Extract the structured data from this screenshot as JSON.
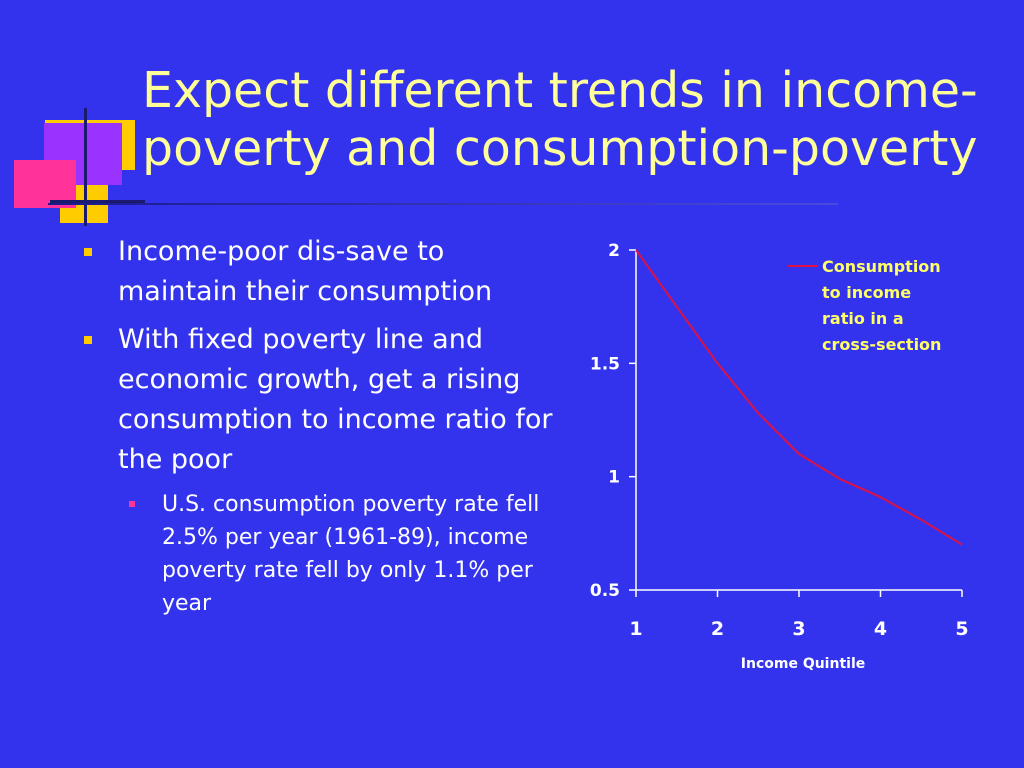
{
  "slide": {
    "title": "Expect different trends in income-poverty and consumption-poverty",
    "bullets": [
      "Income-poor dis-save to maintain their consumption",
      "With fixed poverty line and economic growth, get a rising consumption to income ratio for the poor"
    ],
    "sub_bullets": [
      "U.S. consumption poverty rate fell 2.5% per year (1961-89), income poverty rate fell by only 1.1% per year"
    ]
  },
  "colors": {
    "background": "#3333ee",
    "title": "#ffff99",
    "bullet_marker": "#ffcc00",
    "sub_bullet_marker": "#ff3399",
    "series_line": "#dd1144",
    "legend_text": "#ffff66"
  },
  "chart_data": {
    "type": "line",
    "xlabel": "Income Quintile",
    "ylabel": "",
    "x_ticks": [
      "1",
      "2",
      "3",
      "4",
      "5"
    ],
    "y_ticks": [
      "0.5",
      "1",
      "1.5",
      "2"
    ],
    "xlim": [
      1,
      5
    ],
    "ylim": [
      0.5,
      2
    ],
    "grid": false,
    "legend_position": "top-right",
    "series": [
      {
        "name": "Consumption to income ratio in a cross-section",
        "x": [
          1,
          1.5,
          2,
          2.5,
          3,
          3.5,
          4,
          4.5,
          5
        ],
        "y": [
          2.0,
          1.75,
          1.5,
          1.28,
          1.1,
          0.99,
          0.91,
          0.81,
          0.7
        ]
      }
    ]
  }
}
